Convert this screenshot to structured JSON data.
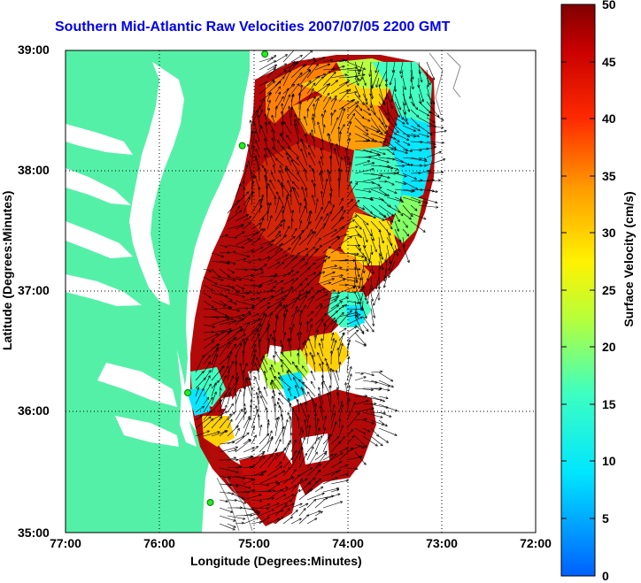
{
  "title": "Southern Mid-Atlantic Raw Velocities 2007/07/05 2200 GMT",
  "xlabel": "Longitude (Degrees:Minutes)",
  "ylabel": "Latitude (Degrees:Minutes)",
  "x_ticks": [
    "77:00",
    "76:00",
    "75:00",
    "74:00",
    "73:00",
    "72:00"
  ],
  "y_ticks": [
    "39:00",
    "38:00",
    "37:00",
    "36:00",
    "35:00"
  ],
  "colorbar": {
    "label": "Surface Velocity (cm/s)",
    "ticks": [
      "50",
      "45",
      "40",
      "35",
      "30",
      "25",
      "20",
      "15",
      "10",
      "5",
      "0"
    ],
    "range": [
      0,
      50
    ],
    "unit": "cm/s"
  },
  "colors": {
    "land": "#55f0a8",
    "title": "#0000ee",
    "vector": "#000000",
    "station": "#22ee22"
  },
  "map": {
    "lon_range": [
      -77,
      -72
    ],
    "lat_range": [
      35,
      39
    ],
    "stations": [
      {
        "lon": -74.88,
        "lat": 38.97
      },
      {
        "lon": -75.12,
        "lat": 38.21
      },
      {
        "lon": -75.7,
        "lat": 36.16
      },
      {
        "lon": -75.46,
        "lat": 35.25
      }
    ]
  }
}
